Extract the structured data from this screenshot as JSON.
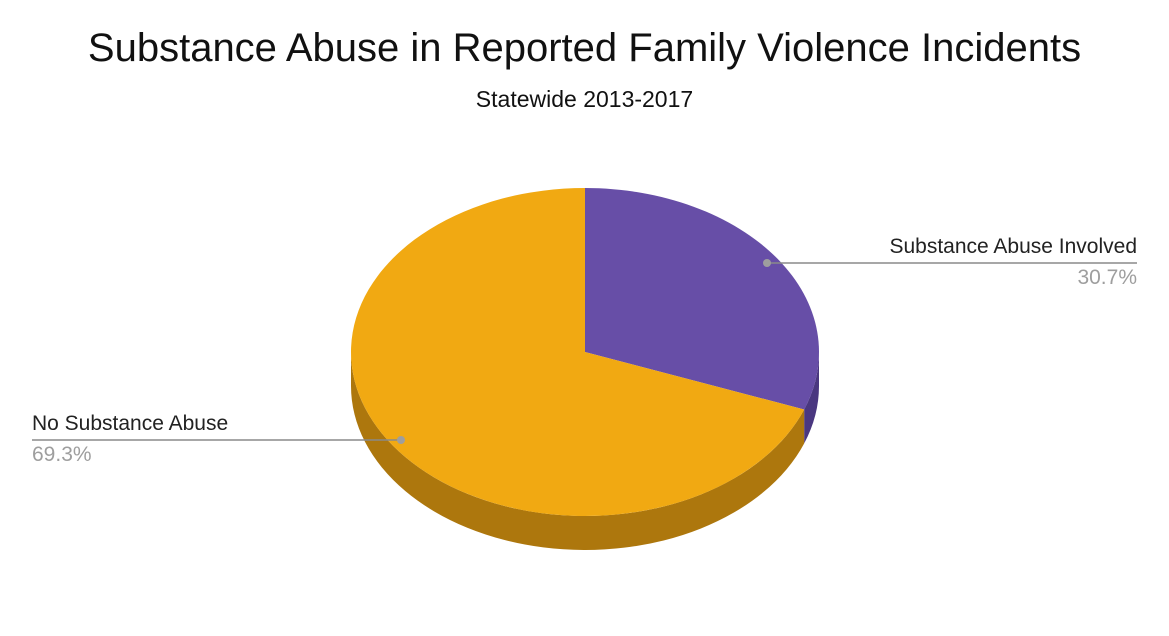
{
  "chart_data": {
    "type": "pie",
    "title": "Substance Abuse in Reported Family Violence Incidents",
    "subtitle": "Statewide 2013-2017",
    "slices": [
      {
        "label": "Substance Abuse Involved",
        "value": 30.7,
        "value_label": "30.7%",
        "color": "#674ea7",
        "side_color": "#4a3780"
      },
      {
        "label": "No Substance Abuse",
        "value": 69.3,
        "value_label": "69.3%",
        "color": "#f1a912",
        "side_color": "#ad770d"
      }
    ],
    "style": "3d",
    "legend": "labels"
  }
}
